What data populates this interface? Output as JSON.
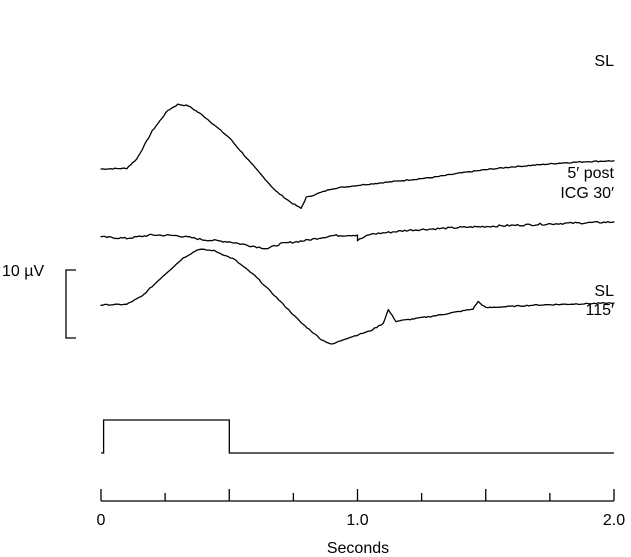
{
  "chart_data": {
    "type": "line",
    "x_axis": {
      "label": "Seconds",
      "range": [
        0,
        2.0
      ],
      "major_ticks": [
        0,
        0.5,
        1.0,
        1.5,
        2.0
      ],
      "minor_ticks": [
        0.25,
        0.75,
        1.25,
        1.75
      ],
      "tick_labels": [
        {
          "value": 0,
          "text": "0"
        },
        {
          "value": 1.0,
          "text": "1.0"
        },
        {
          "value": 2.0,
          "text": "2.0"
        }
      ]
    },
    "scale_bar": {
      "label": "10 µV",
      "value_uv": 10
    },
    "stimulus": {
      "on": 0.01,
      "off": 0.5
    },
    "series": [
      {
        "name": "SL",
        "label_lines": [
          "SL"
        ],
        "baseline_uv": 10,
        "points": [
          [
            0,
            0
          ],
          [
            0.1,
            0.1
          ],
          [
            0.14,
            1.5
          ],
          [
            0.2,
            5.6
          ],
          [
            0.26,
            8.6
          ],
          [
            0.3,
            9.5
          ],
          [
            0.34,
            9.3
          ],
          [
            0.4,
            7.8
          ],
          [
            0.5,
            4.6
          ],
          [
            0.6,
            0.2
          ],
          [
            0.68,
            -3.2
          ],
          [
            0.74,
            -4.9
          ],
          [
            0.78,
            -5.8
          ],
          [
            0.8,
            -4.2
          ],
          [
            0.9,
            -2.9
          ],
          [
            1.0,
            -2.4
          ],
          [
            1.1,
            -2.0
          ],
          [
            1.2,
            -1.6
          ],
          [
            1.3,
            -1.2
          ],
          [
            1.4,
            -0.6
          ],
          [
            1.5,
            -0.1
          ],
          [
            1.6,
            0.3
          ],
          [
            1.7,
            0.6
          ],
          [
            1.8,
            0.9
          ],
          [
            1.9,
            1.1
          ],
          [
            2.0,
            1.2
          ]
        ]
      },
      {
        "name": "5′ post ICG 30′",
        "label_lines": [
          "5′ post",
          "ICG 30′"
        ],
        "baseline_uv": 0,
        "points": [
          [
            0,
            0
          ],
          [
            0.1,
            -0.2
          ],
          [
            0.2,
            0.3
          ],
          [
            0.3,
            0.2
          ],
          [
            0.4,
            -0.4
          ],
          [
            0.5,
            -0.7
          ],
          [
            0.6,
            -1.4
          ],
          [
            0.65,
            -1.7
          ],
          [
            0.7,
            -1.0
          ],
          [
            0.8,
            -0.5
          ],
          [
            0.9,
            0.2
          ],
          [
            1.0,
            0.3
          ],
          [
            1.0,
            -0.5
          ],
          [
            1.05,
            0.4
          ],
          [
            1.2,
            1.0
          ],
          [
            1.4,
            1.4
          ],
          [
            1.6,
            1.7
          ],
          [
            1.8,
            2.0
          ],
          [
            2.0,
            2.2
          ]
        ]
      },
      {
        "name": "SL 115′",
        "label_lines": [
          "SL",
          "115′"
        ],
        "baseline_uv": -10,
        "points": [
          [
            0,
            0
          ],
          [
            0.1,
            0.1
          ],
          [
            0.16,
            1.3
          ],
          [
            0.24,
            4.2
          ],
          [
            0.32,
            6.9
          ],
          [
            0.38,
            8.2
          ],
          [
            0.44,
            8.0
          ],
          [
            0.52,
            6.7
          ],
          [
            0.6,
            4.3
          ],
          [
            0.7,
            0.5
          ],
          [
            0.78,
            -2.6
          ],
          [
            0.86,
            -5.1
          ],
          [
            0.9,
            -5.8
          ],
          [
            0.95,
            -5.0
          ],
          [
            1.05,
            -3.8
          ],
          [
            1.1,
            -2.7
          ],
          [
            1.12,
            -0.7
          ],
          [
            1.15,
            -2.4
          ],
          [
            1.3,
            -1.6
          ],
          [
            1.45,
            -0.6
          ],
          [
            1.47,
            0.5
          ],
          [
            1.5,
            -0.4
          ],
          [
            1.7,
            0.0
          ],
          [
            1.9,
            0.2
          ],
          [
            2.0,
            0.3
          ]
        ]
      }
    ]
  }
}
